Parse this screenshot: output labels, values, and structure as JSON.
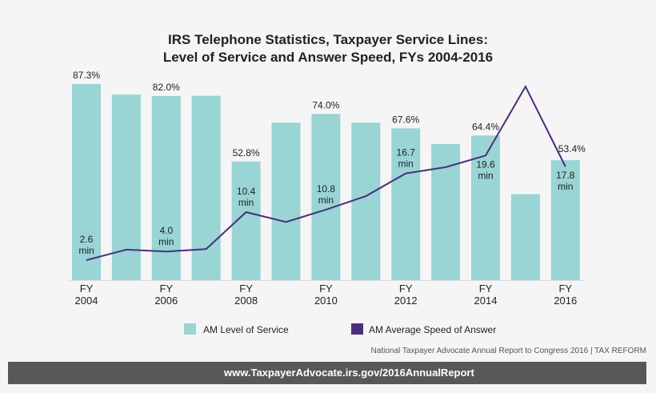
{
  "chart_data": {
    "type": "bar+line",
    "title_lines": [
      "IRS Telephone Statistics, Taxpayer Service Lines:",
      "Level of Service and Answer Speed, FYs 2004-2016"
    ],
    "categories": [
      "2004",
      "2005",
      "2006",
      "2007",
      "2008",
      "2009",
      "2010",
      "2011",
      "2012",
      "2013",
      "2014",
      "2015",
      "2016"
    ],
    "tick_labels": [
      [
        "FY",
        "2004"
      ],
      null,
      [
        "FY",
        "2006"
      ],
      null,
      [
        "FY",
        "2008"
      ],
      null,
      [
        "FY",
        "2010"
      ],
      null,
      [
        "FY",
        "2012"
      ],
      null,
      [
        "FY",
        "2014"
      ],
      null,
      [
        "FY",
        "2016"
      ]
    ],
    "series": [
      {
        "name": "AM Level of Service",
        "type": "bar",
        "unit": "%",
        "color": "#98d5d4",
        "values": [
          87.3,
          82.6,
          82.0,
          82.1,
          52.8,
          70.1,
          74.0,
          70.1,
          67.6,
          60.6,
          64.4,
          38.3,
          53.4
        ],
        "labels": [
          "87.3%",
          null,
          "82.0%",
          null,
          "52.8%",
          null,
          "74.0%",
          null,
          "67.6%",
          null,
          "64.4%",
          null,
          "53.4%"
        ]
      },
      {
        "name": "AM Average Speed of Answer",
        "type": "line",
        "unit": "min",
        "color": "#4b2d7f",
        "values": [
          2.6,
          4.3,
          4.0,
          4.4,
          10.4,
          8.8,
          10.8,
          13.0,
          16.7,
          17.7,
          19.6,
          30.8,
          17.8
        ],
        "labels": [
          "2.6",
          "",
          "4.0",
          "",
          "10.4",
          "",
          "10.8",
          "",
          "16.7",
          "",
          "19.6",
          "",
          "17.8"
        ],
        "label_unit": "min"
      }
    ],
    "legend_placement": "bottom",
    "grid": false
  },
  "source": "National Taxpayer Advocate Annual Report to Congress 2016 | TAX REFORM",
  "footer": "www.TaxpayerAdvocate.irs.gov/2016AnnualReport"
}
